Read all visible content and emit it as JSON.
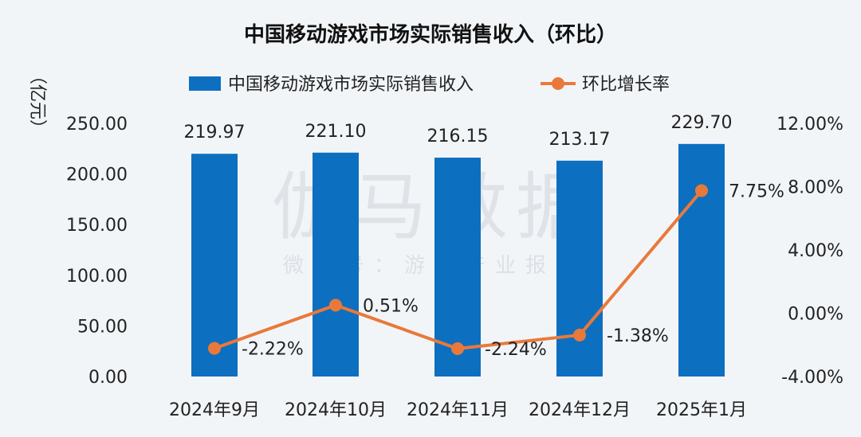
{
  "chart_data": {
    "type": "bar",
    "title": "中国移动游戏市场实际销售收入（环比）",
    "ylabel": "（亿元）",
    "categories": [
      "2024年9月",
      "2024年10月",
      "2024年11月",
      "2024年12月",
      "2025年1月"
    ],
    "series": [
      {
        "name": "中国移动游戏市场实际销售收入",
        "type": "bar",
        "axis": "left",
        "values": [
          219.97,
          221.1,
          216.15,
          213.17,
          229.7
        ],
        "labels": [
          "219.97",
          "221.10",
          "216.15",
          "213.17",
          "229.70"
        ],
        "color": "#0d6fc0"
      },
      {
        "name": "环比增长率",
        "type": "line",
        "axis": "right",
        "values": [
          -2.22,
          0.51,
          -2.24,
          -1.38,
          7.75
        ],
        "labels": [
          "-2.22%",
          "0.51%",
          "-2.24%",
          "-1.38%",
          "7.75%"
        ],
        "color": "#e9793a"
      }
    ],
    "y_left": {
      "ylim": [
        0,
        250
      ],
      "ticks": [
        "0.00",
        "50.00",
        "100.00",
        "150.00",
        "200.00",
        "250.00"
      ]
    },
    "y_right": {
      "ylim": [
        -4,
        12
      ],
      "ticks": [
        "-4.00%",
        "0.00%",
        "4.00%",
        "8.00%",
        "12.00%"
      ]
    },
    "legend_position": "top-center",
    "grid": false
  },
  "watermark": {
    "main": "伽马数据",
    "sub": "微信号：游戏产业报告"
  }
}
